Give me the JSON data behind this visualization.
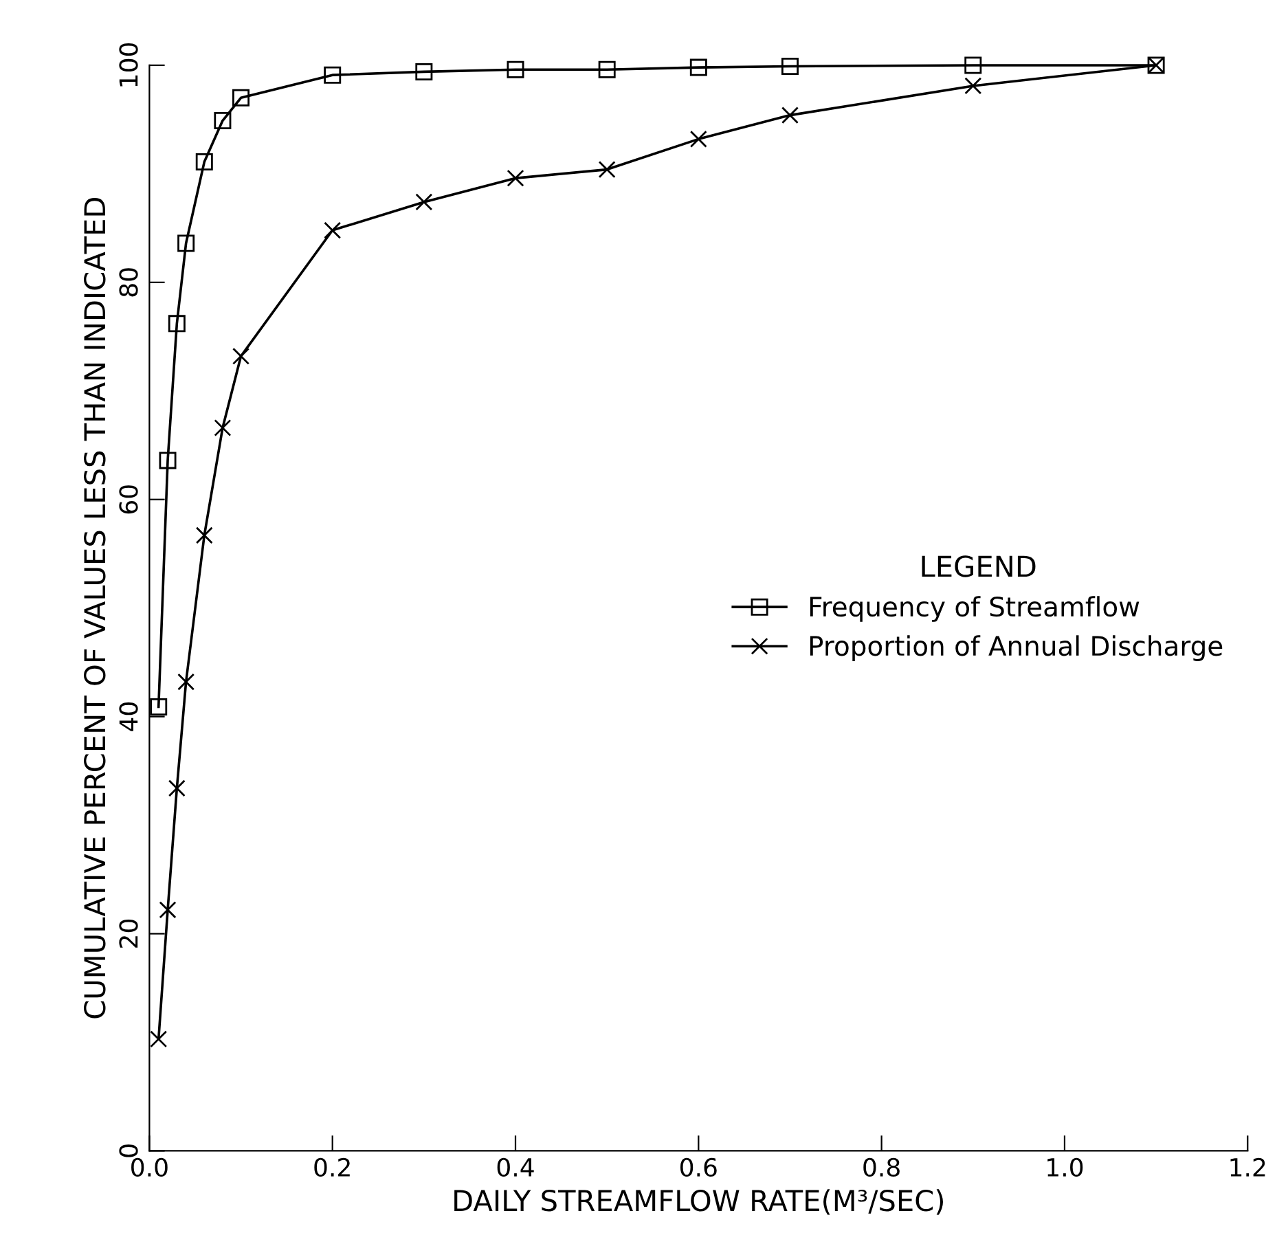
{
  "chart_data": {
    "type": "line",
    "xlabel": "DAILY STREAMFLOW RATE(M³/SEC)",
    "ylabel": "CUMULATIVE PERCENT OF VALUES LESS THAN INDICATED",
    "legend_title": "LEGEND",
    "x": [
      0.01,
      0.02,
      0.03,
      0.04,
      0.06,
      0.08,
      0.1,
      0.2,
      0.3,
      0.4,
      0.5,
      0.6,
      0.7,
      0.9,
      1.1
    ],
    "series": [
      {
        "name": "Frequency of Streamflow",
        "color": "#000000",
        "marker": "square",
        "values": [
          40.9,
          63.6,
          76.2,
          83.6,
          91.1,
          94.9,
          97.0,
          99.1,
          99.4,
          99.6,
          99.6,
          99.8,
          99.9,
          100,
          100
        ]
      },
      {
        "name": "Proportion of Annual Discharge",
        "color": "#000000",
        "marker": "cross",
        "values": [
          10.3,
          22.2,
          33.4,
          43.2,
          56.7,
          66.6,
          73.2,
          84.8,
          87.4,
          89.6,
          90.4,
          93.2,
          95.4,
          98.1,
          100
        ]
      }
    ],
    "xlim": [
      0,
      1.2
    ],
    "xticks": [
      {
        "value": 0,
        "label": "0.0"
      },
      {
        "value": 0.2,
        "label": "0.2"
      },
      {
        "value": 0.4,
        "label": "0.4"
      },
      {
        "value": 0.6,
        "label": "0.6"
      },
      {
        "value": 0.8,
        "label": "0.8"
      },
      {
        "value": 1.0,
        "label": "1.0"
      },
      {
        "value": 1.2,
        "label": "1.2"
      }
    ],
    "ylim": [
      0,
      100
    ],
    "yticks": [
      0,
      20,
      40,
      60,
      80,
      100
    ],
    "grid": false,
    "legend": "right",
    "line_style": "solid"
  }
}
